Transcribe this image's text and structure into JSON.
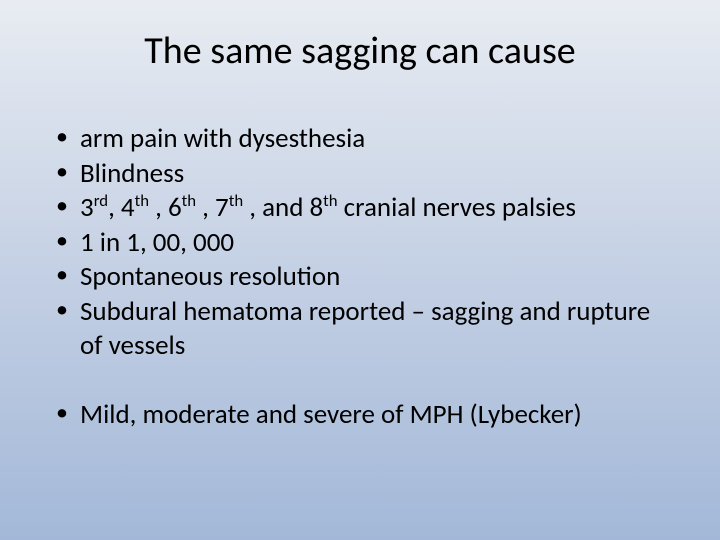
{
  "slide": {
    "title": "The same sagging can cause",
    "background_gradient": [
      "#e8ecf2",
      "#c4d0e4",
      "#a3b8d8"
    ],
    "title_fontsize": 38,
    "body_fontsize": 27,
    "text_color": "#000000",
    "font_family": "Calibri",
    "bullets_group1": [
      "arm pain with dysesthesia",
      "Blindness",
      "3rd, 4th , 6th , 7th , and 8th cranial nerves palsies",
      "1 in 1, 00, 000",
      "Spontaneous resolution",
      "Subdural hematoma reported – sagging and rupture of vessels"
    ],
    "bullets_group2": [
      "Mild,  moderate and severe of MPH (Lybecker)"
    ],
    "b1": {
      "i0": "arm pain with dysesthesia",
      "i1": "Blindness",
      "i3": "1 in 1, 00, 000",
      "i4": "Spontaneous resolution",
      "i5": "Subdural hematoma reported – sagging and rupture of vessels"
    },
    "b2": {
      "i0": "Mild,  moderate and severe of MPH (Lybecker)"
    },
    "ord": {
      "pre": "3",
      "s0": "rd",
      "m0": ", 4",
      "s1": "th",
      "m1": " , 6",
      "s2": "th",
      "m2": " , 7",
      "s3": "th",
      "m3": " , and 8",
      "s4": "th",
      "post": " cranial nerves palsies"
    }
  }
}
